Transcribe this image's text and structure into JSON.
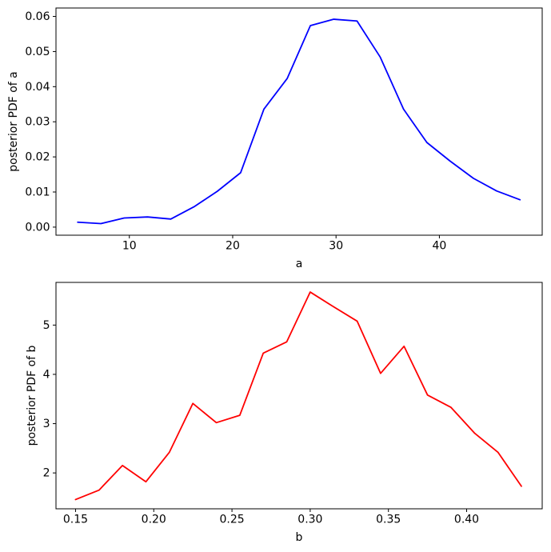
{
  "figure": {
    "background": "#ffffff",
    "text_color": "#000000",
    "spine_color": "#000000"
  },
  "chart_data": [
    {
      "type": "line",
      "title": "",
      "xlabel": "a",
      "ylabel": "posterior PDF of a",
      "color": "#0000ff",
      "grid": false,
      "legend": "none",
      "xlim": [
        2.9,
        49.95
      ],
      "ylim": [
        -0.0023,
        0.0624
      ],
      "xticks": {
        "values": [
          10,
          20,
          30,
          40
        ],
        "labels": [
          "10",
          "20",
          "30",
          "40"
        ]
      },
      "yticks": {
        "values": [
          0.0,
          0.01,
          0.02,
          0.03,
          0.04,
          0.05,
          0.06
        ],
        "labels": [
          "0.00",
          "0.01",
          "0.02",
          "0.03",
          "0.04",
          "0.05",
          "0.06"
        ]
      },
      "x": [
        5.0,
        7.25,
        9.5,
        11.76,
        14.01,
        16.26,
        18.51,
        20.77,
        23.02,
        25.27,
        27.52,
        29.78,
        32.03,
        34.28,
        36.53,
        38.79,
        41.04,
        43.29,
        45.54,
        47.8
      ],
      "y": [
        0.0014,
        0.001,
        0.0026,
        0.0029,
        0.0023,
        0.0058,
        0.0102,
        0.0155,
        0.0336,
        0.0423,
        0.0574,
        0.0592,
        0.0587,
        0.0484,
        0.0336,
        0.0241,
        0.0188,
        0.0139,
        0.0103,
        0.0078
      ]
    },
    {
      "type": "line",
      "title": "",
      "xlabel": "b",
      "ylabel": "posterior PDF of b",
      "color": "#ff0000",
      "grid": false,
      "legend": "none",
      "xlim": [
        0.1375,
        0.4483
      ],
      "ylim": [
        1.272,
        5.866
      ],
      "xticks": {
        "values": [
          0.15,
          0.2,
          0.25,
          0.3,
          0.35,
          0.4
        ],
        "labels": [
          "0.15",
          "0.20",
          "0.25",
          "0.30",
          "0.35",
          "0.40"
        ]
      },
      "yticks": {
        "values": [
          2,
          3,
          4,
          5
        ],
        "labels": [
          "2",
          "3",
          "4",
          "5"
        ]
      },
      "x": [
        0.15,
        0.165,
        0.18,
        0.195,
        0.21,
        0.225,
        0.24,
        0.255,
        0.27,
        0.285,
        0.3,
        0.315,
        0.33,
        0.345,
        0.36,
        0.375,
        0.39,
        0.405,
        0.42,
        0.435
      ],
      "y": [
        1.46,
        1.65,
        2.15,
        1.82,
        2.42,
        3.41,
        3.02,
        3.17,
        4.43,
        4.66,
        5.67,
        5.37,
        5.08,
        4.02,
        4.57,
        3.58,
        3.33,
        2.81,
        2.42,
        1.73
      ]
    }
  ]
}
